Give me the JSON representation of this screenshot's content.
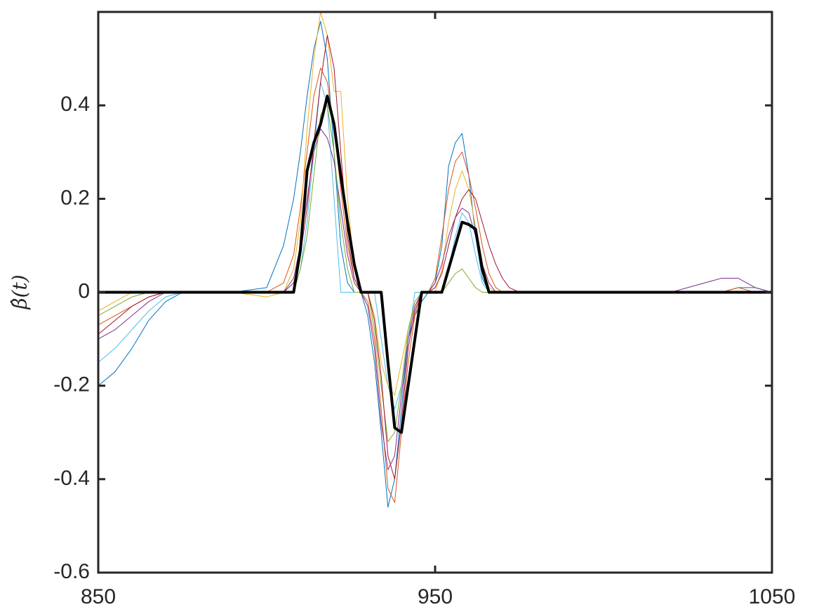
{
  "chart_data": {
    "type": "line",
    "ylabel": "β̂(t)",
    "x": [
      850,
      855,
      860,
      865,
      870,
      875,
      880,
      890,
      900,
      905,
      908,
      910,
      912,
      914,
      916,
      918,
      920,
      922,
      924,
      926,
      928,
      930,
      932,
      934,
      936,
      938,
      940,
      942,
      944,
      946,
      948,
      950,
      952,
      954,
      956,
      958,
      960,
      962,
      964,
      966,
      968,
      970,
      972,
      975,
      980,
      1000,
      1020,
      1035,
      1040,
      1045,
      1050
    ],
    "series": [
      {
        "color": "#0072BD",
        "line_width": 1,
        "values": [
          -0.2,
          -0.17,
          -0.12,
          -0.06,
          -0.02,
          0,
          0,
          0,
          0.01,
          0.1,
          0.2,
          0.3,
          0.42,
          0.52,
          0.58,
          0.5,
          0.3,
          0.1,
          0.02,
          0,
          0,
          -0.05,
          -0.15,
          -0.3,
          -0.46,
          -0.4,
          -0.25,
          -0.1,
          -0.05,
          -0.02,
          0,
          0.02,
          0.1,
          0.27,
          0.32,
          0.34,
          0.25,
          0.12,
          0.03,
          0,
          0,
          0,
          0,
          0,
          0,
          0,
          0,
          0,
          0.01,
          0.01,
          0
        ]
      },
      {
        "color": "#4DBEEE",
        "line_width": 1,
        "values": [
          -0.15,
          -0.12,
          -0.08,
          -0.04,
          -0.01,
          0,
          0,
          0,
          0,
          0,
          0,
          0.05,
          0.15,
          0.3,
          0.45,
          0.4,
          0.2,
          0,
          0,
          0,
          0,
          0,
          0,
          -0.1,
          -0.2,
          -0.25,
          -0.2,
          -0.1,
          0,
          0,
          0,
          0,
          0,
          0.05,
          0.12,
          0.17,
          0.15,
          0.08,
          0.02,
          0,
          0,
          0,
          0,
          0,
          0,
          0,
          0,
          0,
          0,
          0,
          0
        ]
      },
      {
        "color": "#D95319",
        "line_width": 1,
        "values": [
          -0.07,
          -0.05,
          -0.03,
          -0.01,
          0,
          0,
          0,
          0,
          0,
          0.02,
          0.08,
          0.18,
          0.3,
          0.42,
          0.48,
          0.45,
          0.35,
          0.22,
          0.1,
          0.03,
          0,
          -0.02,
          -0.1,
          -0.25,
          -0.42,
          -0.45,
          -0.3,
          -0.15,
          -0.05,
          0,
          0,
          0.03,
          0.12,
          0.22,
          0.28,
          0.3,
          0.25,
          0.18,
          0.1,
          0.04,
          0.01,
          0,
          0,
          0,
          0,
          0,
          0,
          0,
          0.01,
          0,
          0
        ]
      },
      {
        "color": "#EDB120",
        "line_width": 1,
        "values": [
          -0.04,
          -0.02,
          0,
          0,
          0,
          0,
          0,
          0,
          -0.01,
          0,
          0.05,
          0.15,
          0.35,
          0.5,
          0.6,
          0.55,
          0.43,
          0.43,
          0.2,
          0.05,
          0,
          0,
          -0.05,
          -0.15,
          -0.2,
          -0.22,
          -0.15,
          -0.08,
          -0.03,
          0,
          0,
          0,
          0.05,
          0.15,
          0.22,
          0.26,
          0.22,
          0.14,
          0.06,
          0.01,
          0,
          0,
          0,
          0,
          0,
          0,
          0,
          0,
          0,
          0,
          0
        ]
      },
      {
        "color": "#7E2F8E",
        "line_width": 1,
        "values": [
          -0.1,
          -0.08,
          -0.05,
          -0.02,
          0,
          0,
          0,
          0,
          0,
          0,
          0.03,
          0.1,
          0.2,
          0.3,
          0.35,
          0.33,
          0.28,
          0.18,
          0.08,
          0.02,
          0,
          -0.03,
          -0.12,
          -0.28,
          -0.38,
          -0.35,
          -0.22,
          -0.1,
          -0.03,
          0,
          0,
          0.02,
          0.06,
          0.12,
          0.16,
          0.18,
          0.17,
          0.12,
          0.06,
          0.02,
          0,
          0,
          0,
          0,
          0,
          0,
          0,
          0.03,
          0.03,
          0.01,
          0
        ]
      },
      {
        "color": "#77AC30",
        "line_width": 1,
        "values": [
          -0.05,
          -0.03,
          -0.01,
          0,
          0,
          0,
          0,
          0,
          0,
          0,
          0,
          0.05,
          0.12,
          0.25,
          0.38,
          0.4,
          0.3,
          0.15,
          0.05,
          0,
          0,
          0,
          -0.08,
          -0.2,
          -0.32,
          -0.3,
          -0.2,
          -0.08,
          -0.02,
          0,
          0,
          0,
          0,
          0.02,
          0.04,
          0.05,
          0.03,
          0.01,
          0,
          0,
          0,
          0,
          0,
          0,
          0,
          0,
          0,
          0,
          0,
          0,
          0
        ]
      },
      {
        "color": "#A2142F",
        "line_width": 1,
        "values": [
          -0.09,
          -0.06,
          -0.03,
          -0.01,
          0,
          0,
          0,
          0,
          0,
          0,
          0.02,
          0.08,
          0.18,
          0.32,
          0.45,
          0.55,
          0.48,
          0.3,
          0.12,
          0.03,
          0,
          0,
          -0.06,
          -0.18,
          -0.35,
          -0.4,
          -0.28,
          -0.12,
          -0.04,
          0,
          0,
          0.01,
          0.04,
          0.1,
          0.16,
          0.2,
          0.22,
          0.2,
          0.15,
          0.1,
          0.06,
          0.03,
          0.01,
          0,
          0,
          0,
          0,
          0,
          0,
          0,
          0
        ]
      },
      {
        "color": "#000000",
        "line_width": 4,
        "values": [
          0,
          0,
          0,
          0,
          0,
          0,
          0,
          0,
          0,
          0,
          0,
          0.09,
          0.26,
          0.32,
          0.36,
          0.42,
          0.36,
          0.25,
          0.15,
          0.06,
          0,
          0,
          0,
          0,
          -0.15,
          -0.29,
          -0.3,
          -0.2,
          -0.1,
          0,
          0,
          0,
          0,
          0.05,
          0.1,
          0.15,
          0.145,
          0.135,
          0.05,
          0,
          0,
          0,
          0,
          0,
          0,
          0,
          0,
          0,
          0,
          0,
          0
        ]
      }
    ],
    "xlim": [
      850,
      1050
    ],
    "xticks": [
      850,
      950,
      1050
    ],
    "ylim": [
      -0.6,
      0.6
    ],
    "yticks": [
      -0.6,
      -0.4,
      -0.2,
      0,
      0.2,
      0.4
    ],
    "grid": false
  }
}
